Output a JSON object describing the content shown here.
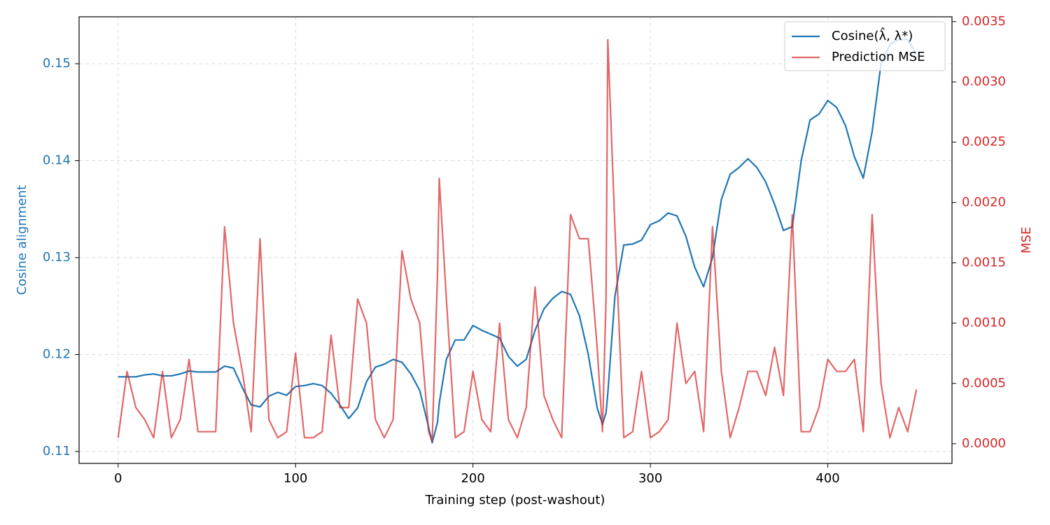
{
  "chart_data": {
    "type": "line",
    "xlabel": "Training step (post-washout)",
    "ylabel": "Cosine alignment",
    "y2label": "MSE",
    "x": [
      0,
      5,
      10,
      15,
      20,
      25,
      30,
      35,
      40,
      45,
      50,
      55,
      60,
      65,
      70,
      75,
      80,
      85,
      90,
      95,
      100,
      105,
      110,
      115,
      120,
      125,
      130,
      135,
      140,
      145,
      150,
      155,
      160,
      165,
      170,
      175,
      177,
      180,
      181,
      185,
      190,
      195,
      200,
      205,
      210,
      215,
      220,
      225,
      230,
      235,
      240,
      245,
      250,
      255,
      260,
      265,
      270,
      273,
      275,
      276,
      280,
      285,
      290,
      295,
      300,
      305,
      310,
      315,
      320,
      325,
      330,
      335,
      340,
      345,
      350,
      355,
      360,
      365,
      370,
      375,
      380,
      385,
      390,
      395,
      400,
      405,
      410,
      415,
      420,
      425,
      430,
      435,
      440,
      445,
      450
    ],
    "series": [
      {
        "name": "Cosine(λ̂, λ*)",
        "color": "#1f77b4",
        "values": [
          0.1177,
          0.1177,
          0.1177,
          0.1179,
          0.118,
          0.1178,
          0.1178,
          0.118,
          0.1183,
          0.1182,
          0.1182,
          0.1182,
          0.1188,
          0.1186,
          0.1166,
          0.1148,
          0.1146,
          0.1157,
          0.1161,
          0.1158,
          0.1167,
          0.1168,
          0.117,
          0.1168,
          0.116,
          0.1148,
          0.1134,
          0.1145,
          0.1172,
          0.1187,
          0.119,
          0.1195,
          0.1192,
          0.118,
          0.1163,
          0.1125,
          0.1109,
          0.113,
          0.115,
          0.1195,
          0.1215,
          0.1215,
          0.123,
          0.1225,
          0.1221,
          0.1217,
          0.1198,
          0.1188,
          0.1195,
          0.1225,
          0.1247,
          0.1258,
          0.1265,
          0.1262,
          0.124,
          0.12,
          0.1145,
          0.1128,
          0.114,
          0.116,
          0.126,
          0.1313,
          0.1314,
          0.1318,
          0.1334,
          0.1338,
          0.1346,
          0.1343,
          0.1322,
          0.129,
          0.127,
          0.13,
          0.136,
          0.1386,
          0.1393,
          0.1402,
          0.1393,
          0.1378,
          0.1355,
          0.1328,
          0.1332,
          0.14,
          0.1442,
          0.1448,
          0.1462,
          0.1455,
          0.1436,
          0.1404,
          0.1382,
          0.143,
          0.15,
          0.152,
          0.1525,
          0.1525,
          0.151
        ]
      },
      {
        "name": "Prediction MSE",
        "color": "#d62728",
        "axis": "y2",
        "values": [
          5e-05,
          0.0006,
          0.0003,
          0.0002,
          5e-05,
          0.0006,
          5e-05,
          0.0002,
          0.0007,
          0.0001,
          0.0001,
          0.0001,
          0.0018,
          0.001,
          0.0006,
          0.0001,
          0.0017,
          0.0002,
          5e-05,
          0.0001,
          0.00075,
          5e-05,
          5e-05,
          0.0001,
          0.0009,
          0.0003,
          0.0003,
          0.0012,
          0.001,
          0.0002,
          5e-05,
          0.0002,
          0.0016,
          0.0012,
          0.001,
          0.0001,
          2e-05,
          0.0014,
          0.0022,
          0.0012,
          5e-05,
          0.0001,
          0.0006,
          0.0002,
          0.0001,
          0.001,
          0.0002,
          5e-05,
          0.0003,
          0.0013,
          0.0004,
          0.0002,
          5e-05,
          0.0019,
          0.0017,
          0.0017,
          0.0008,
          0.0001,
          0.0012,
          0.00335,
          0.0018,
          5e-05,
          0.0001,
          0.0006,
          5e-05,
          0.0001,
          0.0002,
          0.001,
          0.0005,
          0.0006,
          0.0001,
          0.0018,
          0.0006,
          5e-05,
          0.0003,
          0.0006,
          0.0006,
          0.0004,
          0.0008,
          0.0004,
          0.0019,
          0.0001,
          0.0001,
          0.0003,
          0.0007,
          0.0006,
          0.0006,
          0.0007,
          0.0001,
          0.0019,
          0.0005,
          5e-05,
          0.0003,
          0.0001,
          0.00045
        ]
      }
    ],
    "xlim": [
      -22,
      470
    ],
    "xticks": [
      0,
      100,
      200,
      300,
      400
    ],
    "ylim": [
      0.10877,
      0.15484
    ],
    "yticks": [
      0.11,
      0.12,
      0.13,
      0.14,
      0.15
    ],
    "y2lim": [
      -0.000163,
      0.00354
    ],
    "y2ticks": [
      {
        "value": 0,
        "label": "0.0000"
      },
      0.0005,
      {
        "value": 0.001,
        "label": "0.0010"
      },
      0.0015,
      {
        "value": 0.002,
        "label": "0.0020"
      },
      0.0025,
      {
        "value": 0.003,
        "label": "0.0030"
      },
      0.0035
    ],
    "grid": true,
    "legend": "upper right"
  }
}
